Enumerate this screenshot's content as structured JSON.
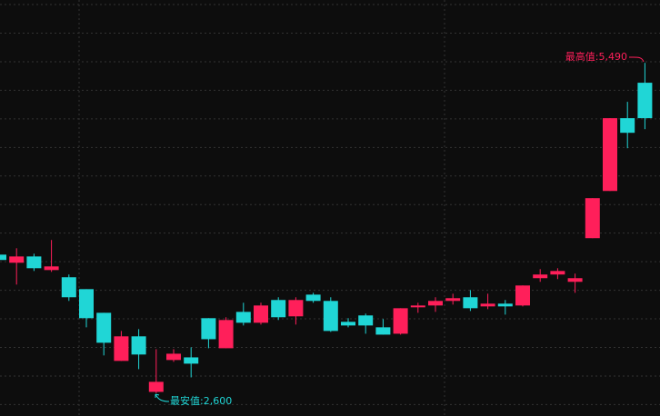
{
  "chart_data": {
    "type": "candlestick",
    "categories": [
      null,
      null,
      null,
      null,
      null,
      null,
      null,
      null,
      null,
      null,
      null,
      null,
      null,
      null,
      null,
      null,
      null,
      null,
      null,
      null,
      null,
      null,
      null,
      null,
      null,
      null,
      null,
      null,
      null,
      null,
      null,
      null,
      null,
      null,
      null,
      null,
      null,
      null
    ],
    "open": [
      3812,
      3741,
      3796,
      3677,
      3614,
      3510,
      3303,
      2882,
      3097,
      2611,
      2890,
      2913,
      3256,
      2993,
      3311,
      3216,
      3415,
      3272,
      3462,
      3407,
      3224,
      3280,
      3176,
      3120,
      3351,
      3367,
      3407,
      3439,
      3359,
      3383,
      3367,
      3606,
      3638,
      3574,
      3956,
      4369,
      5006,
      5316
    ],
    "high": [
      3820,
      3868,
      3820,
      3940,
      3638,
      3510,
      3303,
      3144,
      3160,
      2985,
      2985,
      3001,
      3256,
      3264,
      3391,
      3391,
      3439,
      3439,
      3478,
      3439,
      3256,
      3296,
      3248,
      3343,
      3391,
      3439,
      3470,
      3502,
      3470,
      3415,
      3542,
      3685,
      3693,
      3646,
      4306,
      5006,
      5149,
      5490
    ],
    "low": [
      3755,
      3550,
      3669,
      3661,
      3407,
      3176,
      2930,
      2882,
      2810,
      2600,
      2874,
      2738,
      2993,
      2993,
      3192,
      3200,
      3240,
      3200,
      3391,
      3136,
      3176,
      3120,
      3112,
      3112,
      3303,
      3311,
      3375,
      3319,
      3335,
      3287,
      3359,
      3574,
      3598,
      3478,
      3956,
      4369,
      4743,
      4910
    ],
    "close": [
      3765,
      3796,
      3693,
      3709,
      3439,
      3256,
      3041,
      3097,
      2938,
      2699,
      2945,
      2858,
      3072,
      3240,
      3216,
      3367,
      3264,
      3415,
      3407,
      3144,
      3192,
      3192,
      3112,
      3343,
      3367,
      3407,
      3431,
      3343,
      3383,
      3359,
      3542,
      3638,
      3669,
      3606,
      4306,
      5006,
      4878,
      5006
    ],
    "up_color": "#ff1f5a",
    "down_color": "#20d6d6",
    "ylim": [
      2400,
      6040
    ],
    "yticks": [
      2500,
      2750,
      3000,
      3250,
      3500,
      3750,
      4000,
      4250,
      4500,
      4750,
      5000,
      5250,
      5500,
      5750,
      6000
    ],
    "grid": true,
    "annotations": [
      {
        "text": "最高值:5,490"
      },
      {
        "text": "最安值:2,600"
      }
    ]
  }
}
